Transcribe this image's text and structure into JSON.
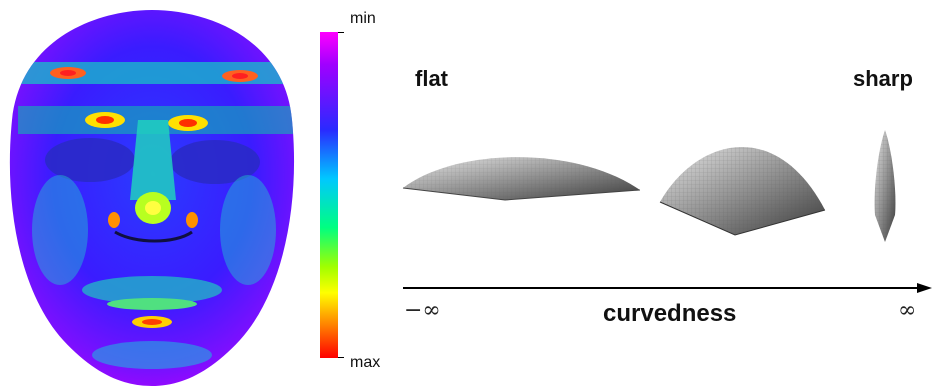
{
  "colorbar": {
    "min_label": "min",
    "max_label": "max"
  },
  "shapes": {
    "left_label": "flat",
    "right_label": "sharp"
  },
  "axis": {
    "title": "curvedness",
    "left_end": "−∞",
    "right_end": "∞"
  },
  "colors": {
    "text": "#111111",
    "axis": "#000000"
  }
}
